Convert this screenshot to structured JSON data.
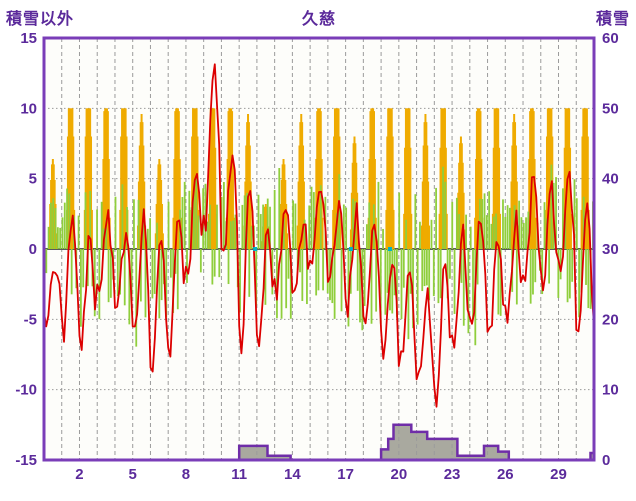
{
  "labels": {
    "title": "久慈",
    "left_axis_title": "積雪以外",
    "right_axis_title": "積雪"
  },
  "colors": {
    "text": "#5b2a9b",
    "frame": "#7a3db8",
    "grid": "#9b9b9b",
    "zero_line": "#5a5a5a",
    "plot_bg": "#fdfdfa",
    "temperature": "#dc0000",
    "anomaly": "#8fce3c",
    "sunshine": "#efab00",
    "snow": "#6f2da8",
    "snow_fill": "#a9a99f",
    "marker": "#00b2c8"
  },
  "chart_data": {
    "type": "line",
    "title": "久慈",
    "left_axis": {
      "label": "積雪以外",
      "min": -15,
      "max": 15,
      "ticks": [
        15,
        10,
        5,
        0,
        -5,
        -10,
        -15
      ]
    },
    "right_axis": {
      "label": "積雪",
      "min": 0,
      "max": 60,
      "ticks": [
        60,
        50,
        40,
        30,
        20,
        10,
        0
      ]
    },
    "x_axis": {
      "min": 0,
      "max": 31,
      "tick_labels": [
        2,
        5,
        8,
        11,
        14,
        17,
        20,
        23,
        26,
        29
      ],
      "gridline_every_day": true
    },
    "series": {
      "temperature": {
        "color": "#dc0000",
        "axis": "left",
        "daily_max": [
          -1,
          3,
          1,
          2,
          1,
          2,
          1,
          2,
          6,
          13,
          7,
          5,
          2,
          3,
          2,
          5,
          3,
          2.5,
          2,
          -1,
          -2,
          -3,
          -1,
          1,
          2,
          1,
          2,
          5,
          4,
          5,
          3
        ],
        "daily_min": [
          -5,
          -6,
          -7,
          -3,
          -4,
          -6,
          -8.5,
          -7,
          -2,
          2,
          -1,
          -7,
          -7.5,
          -3,
          -3,
          -1,
          -2,
          -4,
          -6,
          -7,
          -8,
          -9.5,
          -11,
          -7,
          -6,
          -6.5,
          -5,
          -2,
          -3,
          -1,
          -6
        ]
      },
      "anomaly": {
        "color": "#8fce3c",
        "axis": "left",
        "daily_pos": [
          4,
          6,
          5,
          4,
          5,
          4,
          3,
          5,
          6,
          5,
          5,
          4,
          5,
          6,
          4,
          5,
          6,
          7,
          5,
          4,
          5,
          4,
          6,
          5,
          4,
          5,
          6,
          5,
          6,
          5,
          4
        ],
        "daily_neg": [
          4,
          5,
          6,
          5,
          6,
          7,
          6,
          5,
          4,
          3,
          4,
          6,
          7,
          5,
          4,
          4,
          5,
          6,
          7,
          6,
          7,
          6,
          5,
          6,
          7,
          6,
          5,
          4,
          5,
          6,
          7
        ]
      },
      "sunshine": {
        "color": "#efab00",
        "axis": "left",
        "max_bar": 10,
        "daily": [
          4,
          10,
          10,
          8,
          10,
          6,
          4,
          8,
          10,
          9,
          8,
          6,
          2,
          4,
          6,
          8,
          10,
          5,
          8,
          10,
          9,
          6,
          9,
          5,
          8,
          9,
          6,
          8,
          10,
          9,
          10
        ]
      },
      "snow_depth": {
        "color": "#6f2da8",
        "axis": "right",
        "steps": [
          [
            0,
            0
          ],
          [
            11,
            0
          ],
          [
            11,
            2
          ],
          [
            12.6,
            2
          ],
          [
            12.6,
            0.6
          ],
          [
            13.9,
            0.6
          ],
          [
            13.9,
            0
          ],
          [
            19.0,
            0
          ],
          [
            19.0,
            1.5
          ],
          [
            19.4,
            1.5
          ],
          [
            19.4,
            3
          ],
          [
            19.7,
            3
          ],
          [
            19.7,
            5
          ],
          [
            20.7,
            5
          ],
          [
            20.7,
            4
          ],
          [
            21.6,
            4
          ],
          [
            21.6,
            3
          ],
          [
            23.3,
            3
          ],
          [
            23.3,
            0.6
          ],
          [
            24.8,
            0.6
          ],
          [
            24.8,
            2
          ],
          [
            25.6,
            2
          ],
          [
            25.6,
            1.2
          ],
          [
            26.2,
            1.2
          ],
          [
            26.2,
            0
          ],
          [
            30.8,
            0
          ],
          [
            30.8,
            1
          ],
          [
            31,
            1
          ]
        ]
      },
      "markers": {
        "color": "#00b2c8",
        "axis": "left",
        "x": [
          11.9,
          17.3,
          19.5
        ],
        "value": 0
      }
    }
  }
}
